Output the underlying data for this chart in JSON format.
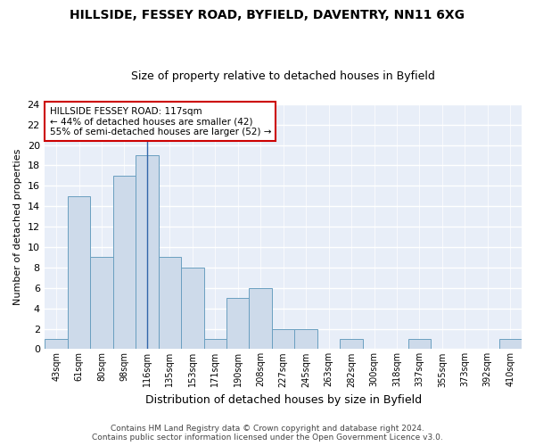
{
  "title1": "HILLSIDE, FESSEY ROAD, BYFIELD, DAVENTRY, NN11 6XG",
  "title2": "Size of property relative to detached houses in Byfield",
  "xlabel": "Distribution of detached houses by size in Byfield",
  "ylabel": "Number of detached properties",
  "categories": [
    "43sqm",
    "61sqm",
    "80sqm",
    "98sqm",
    "116sqm",
    "135sqm",
    "153sqm",
    "171sqm",
    "190sqm",
    "208sqm",
    "227sqm",
    "245sqm",
    "263sqm",
    "282sqm",
    "300sqm",
    "318sqm",
    "337sqm",
    "355sqm",
    "373sqm",
    "392sqm",
    "410sqm"
  ],
  "values": [
    1,
    15,
    9,
    17,
    19,
    9,
    8,
    1,
    5,
    6,
    2,
    2,
    0,
    1,
    0,
    0,
    1,
    0,
    0,
    0,
    1
  ],
  "bar_color": "#cddaea",
  "bar_edge_color": "#6a9fc0",
  "highlight_index": 4,
  "highlight_line_color": "#3366aa",
  "ylim": [
    0,
    24
  ],
  "yticks": [
    0,
    2,
    4,
    6,
    8,
    10,
    12,
    14,
    16,
    18,
    20,
    22,
    24
  ],
  "annotation_line1": "HILLSIDE FESSEY ROAD: 117sqm",
  "annotation_line2": "← 44% of detached houses are smaller (42)",
  "annotation_line3": "55% of semi-detached houses are larger (52) →",
  "annotation_box_color": "#ffffff",
  "annotation_box_edge": "#cc0000",
  "footer1": "Contains HM Land Registry data © Crown copyright and database right 2024.",
  "footer2": "Contains public sector information licensed under the Open Government Licence v3.0.",
  "fig_bg_color": "#ffffff",
  "plot_bg_color": "#e8eef8",
  "grid_color": "#ffffff",
  "title1_fontsize": 10,
  "title2_fontsize": 9,
  "xlabel_fontsize": 9,
  "ylabel_fontsize": 8,
  "tick_fontsize": 7,
  "footer_fontsize": 6.5
}
